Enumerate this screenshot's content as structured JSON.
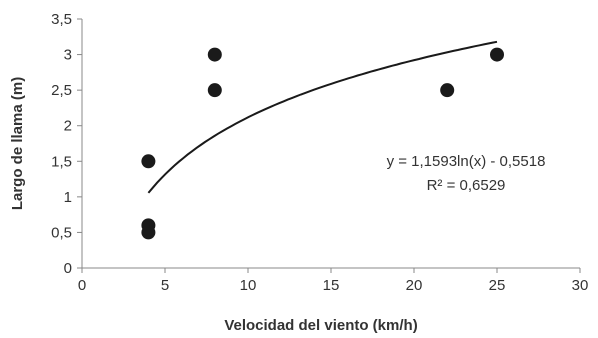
{
  "chart_data": {
    "type": "scatter",
    "xlabel": "Velocidad del viento (km/h)",
    "ylabel": "Largo de llama (m)",
    "xlim": [
      0,
      30
    ],
    "ylim": [
      0,
      3.5
    ],
    "x_ticks": [
      "0",
      "5",
      "10",
      "15",
      "20",
      "25",
      "30"
    ],
    "y_ticks": [
      "0",
      "0,5",
      "1",
      "1,5",
      "2",
      "2,5",
      "3",
      "3,5"
    ],
    "grid": false,
    "points": [
      {
        "x": 4,
        "y": 1.5
      },
      {
        "x": 4,
        "y": 0.6
      },
      {
        "x": 4,
        "y": 0.5
      },
      {
        "x": 8,
        "y": 3.0
      },
      {
        "x": 8,
        "y": 2.5
      },
      {
        "x": 22,
        "y": 2.5
      },
      {
        "x": 25,
        "y": 3.0
      }
    ],
    "trendline": {
      "type": "logarithmic",
      "a": 1.1593,
      "b": -0.5518,
      "x_range": [
        4,
        25
      ],
      "equation_label": "y = 1,1593ln(x) - 0,5518",
      "r2_label": "R² = 0,6529"
    },
    "colors": {
      "points": "#1a1a1a",
      "trendline": "#1a1a1a",
      "axis": "#888888"
    }
  }
}
